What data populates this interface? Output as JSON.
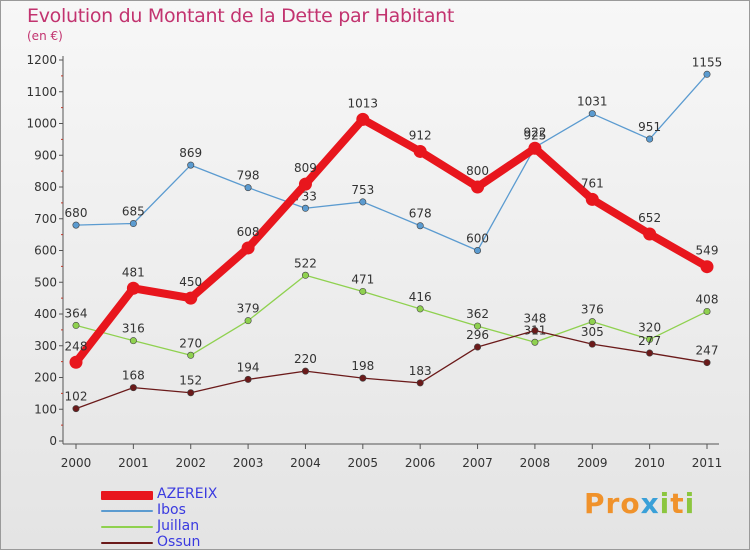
{
  "header": {
    "title": "Evolution du Montant de la Dette par Habitant",
    "subtitle": "(en €)"
  },
  "brand": {
    "name": "Proxiti"
  },
  "chart_data": {
    "type": "line",
    "title": "Evolution du Montant de la Dette par Habitant",
    "subtitle": "(en €)",
    "xlabel": "",
    "ylabel": "",
    "x": [
      "2000",
      "2001",
      "2002",
      "2003",
      "2004",
      "2005",
      "2006",
      "2007",
      "2008",
      "2009",
      "2010",
      "2011"
    ],
    "ylim": [
      0,
      1200
    ],
    "yticks": [
      0,
      100,
      200,
      300,
      400,
      500,
      600,
      700,
      800,
      900,
      1000,
      1100,
      1200
    ],
    "grid": false,
    "legend_position": "bottom-left",
    "series": [
      {
        "name": "AZEREIX",
        "color": "#e8161d",
        "values": [
          248,
          481,
          450,
          608,
          809,
          1013,
          912,
          800,
          922,
          761,
          652,
          549
        ]
      },
      {
        "name": "Ibos",
        "color": "#5b9bd0",
        "values": [
          680,
          685,
          869,
          798,
          733,
          753,
          678,
          600,
          925,
          1031,
          951,
          1155
        ]
      },
      {
        "name": "Juillan",
        "color": "#8fd14f",
        "values": [
          364,
          316,
          270,
          379,
          522,
          471,
          416,
          362,
          311,
          376,
          320,
          408
        ]
      },
      {
        "name": "Ossun",
        "color": "#6b1a1a",
        "values": [
          102,
          168,
          152,
          194,
          220,
          198,
          183,
          296,
          348,
          305,
          277,
          247
        ]
      }
    ]
  }
}
